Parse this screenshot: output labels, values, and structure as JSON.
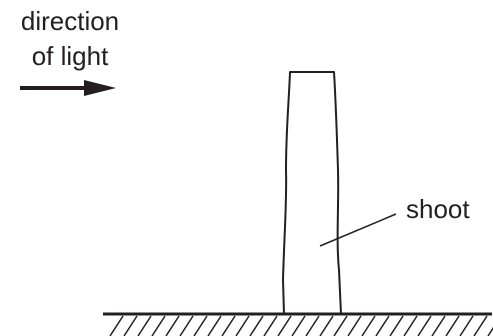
{
  "labels": {
    "direction_line1": "direction",
    "direction_line2": "of light",
    "shoot": "shoot"
  },
  "colors": {
    "ink": "#231f20",
    "background": "#ffffff"
  },
  "icons": {
    "light_arrow": "arrow-right-icon"
  }
}
